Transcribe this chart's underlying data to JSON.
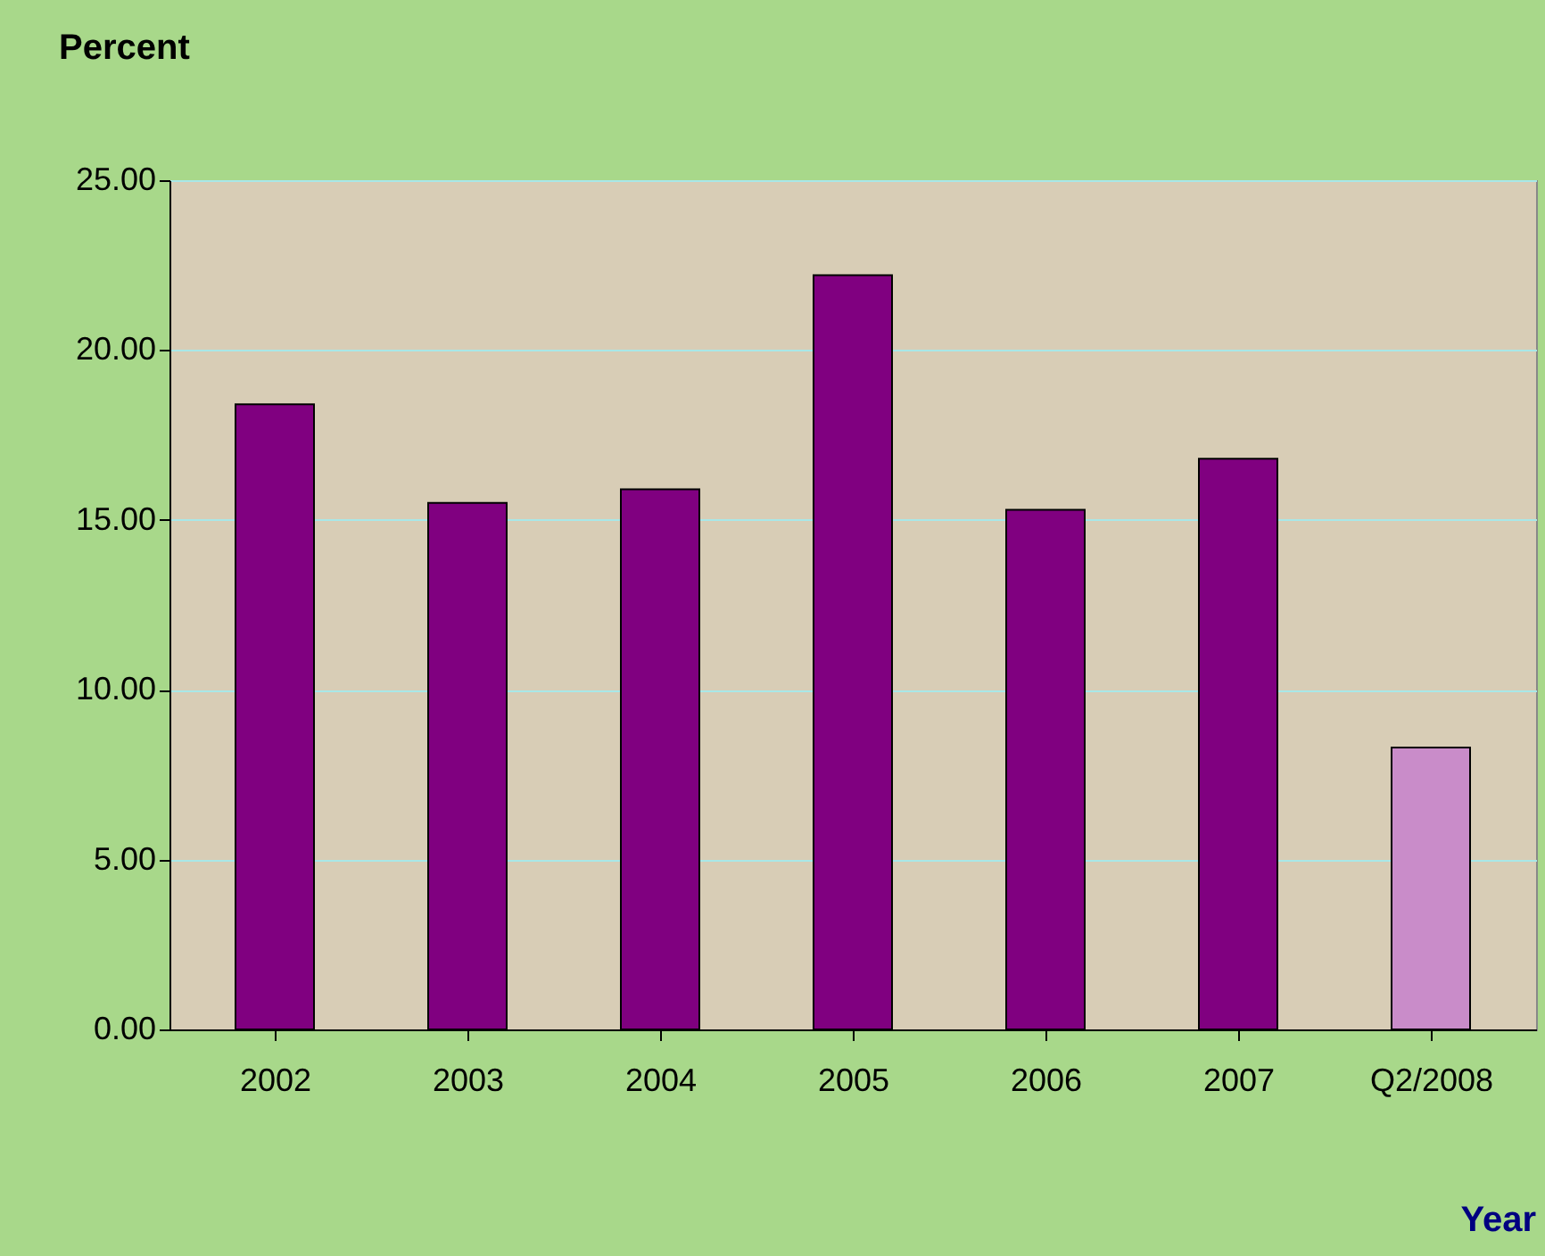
{
  "chart_data": {
    "type": "bar",
    "ylabel": "Percent",
    "xlabel": "Year",
    "categories": [
      "2002",
      "2003",
      "2004",
      "2005",
      "2006",
      "2007",
      "Q2/2008"
    ],
    "values": [
      18.4,
      15.5,
      15.9,
      22.2,
      15.3,
      16.8,
      8.3
    ],
    "colors": [
      "#800080",
      "#800080",
      "#800080",
      "#800080",
      "#800080",
      "#800080",
      "#c98cc9"
    ],
    "ylim": [
      0,
      25
    ],
    "yticks": [
      {
        "value": 0,
        "label": "0.00"
      },
      {
        "value": 5,
        "label": "5.00"
      },
      {
        "value": 10,
        "label": "10.00"
      },
      {
        "value": 15,
        "label": "15.00"
      },
      {
        "value": 20,
        "label": "20.00"
      },
      {
        "value": 25,
        "label": "25.00"
      }
    ],
    "grid": "y"
  }
}
